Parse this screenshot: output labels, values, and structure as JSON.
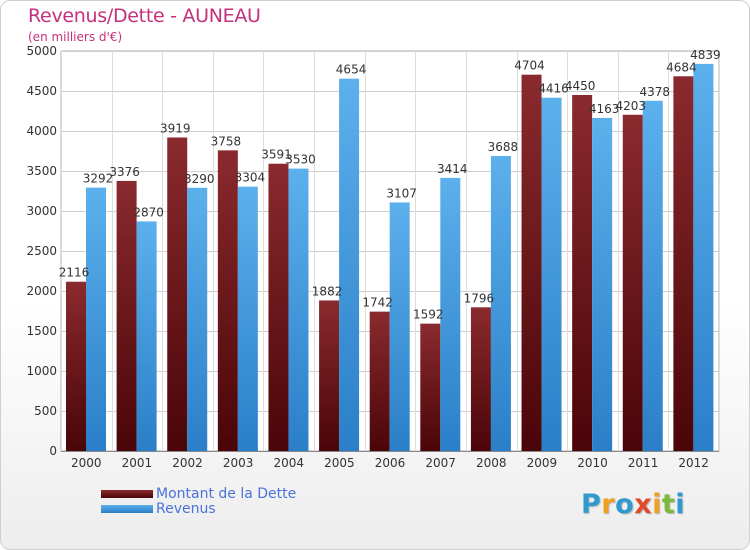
{
  "header": {
    "title": "Revenus/Dette - AUNEAU",
    "subtitle": "(en milliers d'€)"
  },
  "chart_data": {
    "type": "bar",
    "title": "Revenus/Dette - AUNEAU",
    "subtitle": "(en milliers d'€)",
    "xlabel": "",
    "ylabel": "",
    "ylim": [
      0,
      5000
    ],
    "yticks": [
      0,
      500,
      1000,
      1500,
      2000,
      2500,
      3000,
      3500,
      4000,
      4500,
      5000
    ],
    "grid": true,
    "legend_position": "bottom-left",
    "categories": [
      "2000",
      "2001",
      "2002",
      "2003",
      "2004",
      "2005",
      "2006",
      "2007",
      "2008",
      "2009",
      "2010",
      "2011",
      "2012"
    ],
    "series": [
      {
        "name": "Montant de la Dette",
        "color": "#7a1f24",
        "labels": [
          "2116",
          "3376",
          "3919",
          "3758",
          "3591",
          "1882",
          "1742",
          "1592",
          "1796",
          "4704",
          "4450",
          "4203",
          "4684"
        ],
        "values": [
          2116,
          3376,
          3919,
          3758,
          3591,
          1882,
          1742,
          1592,
          1796,
          4704,
          4450,
          4203,
          4684
        ]
      },
      {
        "name": "Revenus",
        "color": "#4aa3e6",
        "labels": [
          "3292",
          "2870",
          "3290",
          "3304",
          "3530",
          "4654",
          "3107",
          "3414",
          "3688",
          "4416",
          "4163",
          "4378",
          "4839"
        ],
        "values": [
          3292,
          2870,
          3290,
          3304,
          3530,
          4654,
          3107,
          3414,
          3688,
          4416,
          4163,
          4378,
          4839
        ]
      }
    ]
  },
  "legend": {
    "items": [
      {
        "label": "Montant de la Dette",
        "color": "#6b1016"
      },
      {
        "label": "Revenus",
        "color": "#3d95dc"
      }
    ]
  },
  "logo": {
    "letters": [
      {
        "char": "P",
        "color": "#2e9ad0"
      },
      {
        "char": "r",
        "color": "#f0a020"
      },
      {
        "char": "o",
        "color": "#2e9ad0"
      },
      {
        "char": "x",
        "color": "#e04a2a"
      },
      {
        "char": "i",
        "color": "#f0a020"
      },
      {
        "char": "t",
        "color": "#7cb83a"
      },
      {
        "char": "i",
        "color": "#2e9ad0"
      }
    ]
  }
}
